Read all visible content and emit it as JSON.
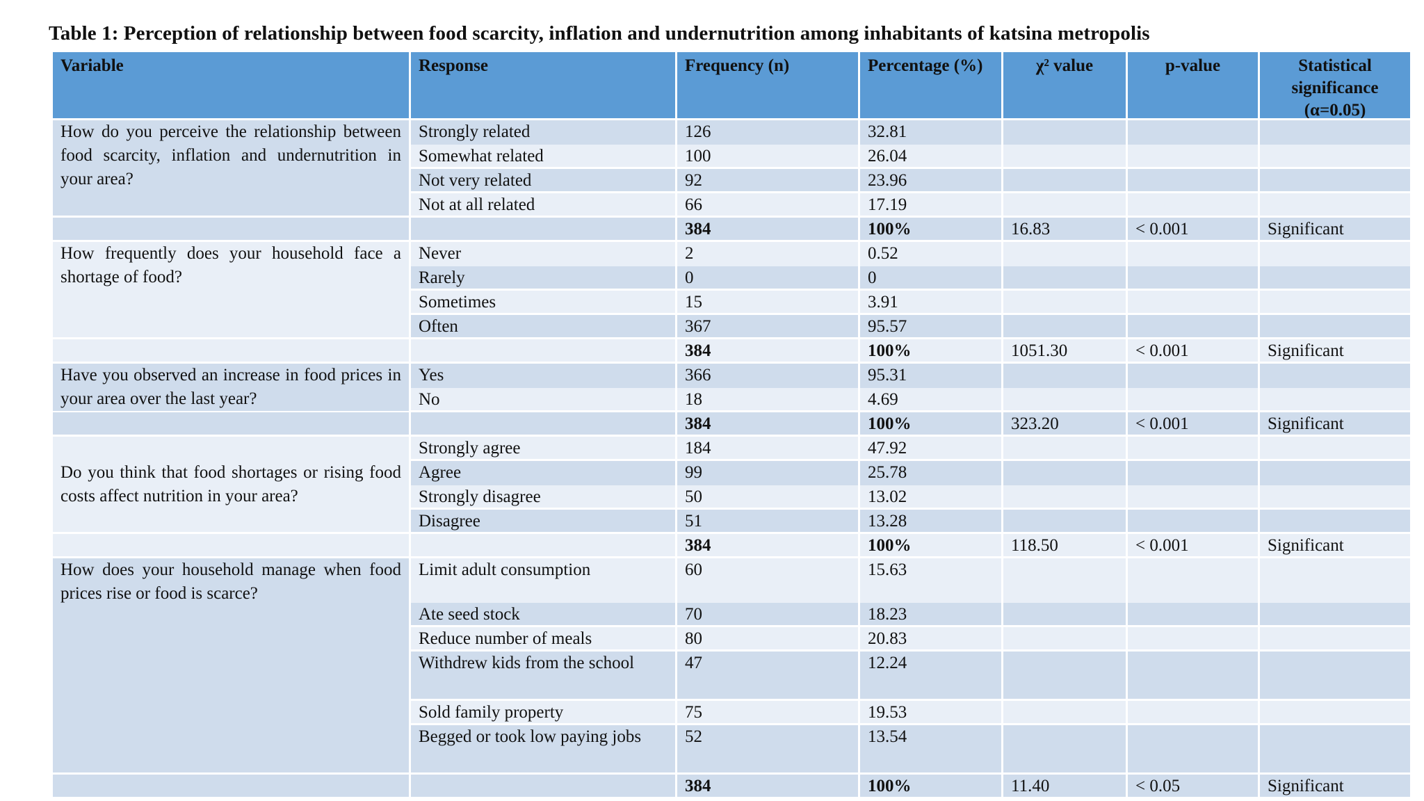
{
  "title": "Table 1: Perception of relationship between food scarcity, inflation and undernutrition  among inhabitants  of  katsina metropolis",
  "columns": [
    "Variable",
    "Response",
    "Frequency (n)",
    "Percentage (%)",
    "χ² value",
    "p-value",
    "Statistical significance (α=0.05)"
  ],
  "rows": [
    [
      "How do you perceive the relationship between food scarcity, inflation and undernutrition in your area?",
      "Strongly related",
      "126",
      "32.81",
      "",
      "",
      ""
    ],
    [
      "",
      "Somewhat related",
      "100",
      "26.04",
      "",
      "",
      ""
    ],
    [
      "",
      "Not very related",
      "92",
      "23.96",
      "",
      "",
      ""
    ],
    [
      "",
      "Not at all related",
      "66",
      "17.19",
      "",
      "",
      ""
    ],
    [
      "",
      "",
      "384",
      "100%",
      "16.83",
      "< 0.001",
      "Significant"
    ],
    [
      "How frequently does your household face a shortage of food?",
      "Never",
      "2",
      "0.52",
      "",
      "",
      ""
    ],
    [
      "",
      "Rarely",
      "0",
      "0",
      "",
      "",
      ""
    ],
    [
      "",
      "Sometimes",
      "15",
      "3.91",
      "",
      "",
      ""
    ],
    [
      "",
      "Often",
      "367",
      "95.57",
      "",
      "",
      ""
    ],
    [
      "",
      "",
      "384",
      "100%",
      "1051.30",
      "< 0.001",
      "Significant"
    ],
    [
      "Have you observed an increase in food prices in your area over the last year?",
      "Yes",
      "366",
      "95.31",
      "",
      "",
      ""
    ],
    [
      "",
      "No",
      "18",
      "4.69",
      "",
      "",
      ""
    ],
    [
      "",
      "",
      "384",
      "100%",
      "323.20",
      "< 0.001",
      "Significant"
    ],
    [
      "",
      "Strongly agree",
      "184",
      "47.92",
      "",
      "",
      ""
    ],
    [
      "Do you think that food shortages or rising food costs affect nutrition in your area?",
      "Agree",
      "99",
      "25.78",
      "",
      "",
      ""
    ],
    [
      "",
      "Strongly disagree",
      "50",
      "13.02",
      "",
      "",
      ""
    ],
    [
      "",
      "Disagree",
      "51",
      "13.28",
      "",
      "",
      ""
    ],
    [
      "",
      "",
      "384",
      "100%",
      "118.50",
      "< 0.001",
      "Significant"
    ],
    [
      "How does your household manage when food prices rise or food is scarce?",
      "Limit adult   consumption",
      "60",
      "15.63",
      "",
      "",
      ""
    ],
    [
      "",
      "Ate seed stock",
      "70",
      "18.23",
      "",
      "",
      ""
    ],
    [
      "",
      "Reduce number of meals",
      "80",
      "20.83",
      "",
      "",
      ""
    ],
    [
      "",
      "Withdrew kids from the school",
      "47",
      "12.24",
      "",
      "",
      ""
    ],
    [
      "",
      "Sold family property",
      "75",
      "19.53",
      "",
      "",
      ""
    ],
    [
      "",
      "Begged or took low  paying jobs",
      "52",
      "13.54",
      "",
      "",
      ""
    ],
    [
      "",
      "",
      "384",
      "100%",
      "11.40",
      "< 0.05",
      "Significant"
    ]
  ]
}
